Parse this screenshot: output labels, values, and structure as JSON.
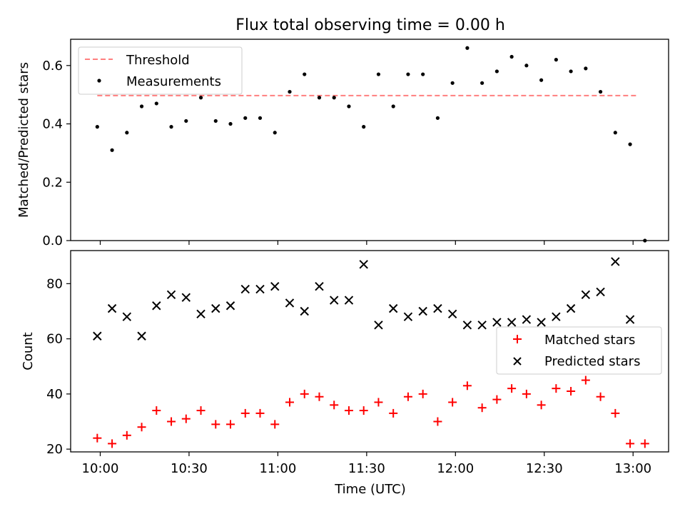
{
  "figure": {
    "title": "Flux total observing time = 0.00 h"
  },
  "colors": {
    "threshold": "#ff7f7f",
    "measurements": "#000000",
    "matched": "#ff0000",
    "predicted": "#000000"
  },
  "chart_data": [
    {
      "type": "scatter",
      "panel": "top",
      "title": "Flux total observing time = 0.00 h",
      "xlabel": "",
      "ylabel": "Matched/Predicted stars",
      "ylim": [
        0,
        0.69
      ],
      "yticks": [
        "0.0",
        "0.2",
        "0.4",
        "0.6"
      ],
      "yticks_values": [
        0.0,
        0.2,
        0.4,
        0.6
      ],
      "legend": {
        "placement": "upper-left",
        "entries": [
          "Threshold",
          "Measurements"
        ]
      },
      "series": [
        {
          "name": "Threshold",
          "style": "dashed-line",
          "x": [
            "09:59",
            "13:01"
          ],
          "values": [
            0.497,
            0.497
          ]
        },
        {
          "name": "Measurements",
          "style": "dot",
          "x": [
            "09:59",
            "10:04",
            "10:09",
            "10:14",
            "10:19",
            "10:24",
            "10:29",
            "10:34",
            "10:39",
            "10:44",
            "10:49",
            "10:54",
            "10:59",
            "11:04",
            "11:09",
            "11:14",
            "11:19",
            "11:24",
            "11:29",
            "11:34",
            "11:39",
            "11:44",
            "11:49",
            "11:54",
            "11:59",
            "12:04",
            "12:09",
            "12:14",
            "12:19",
            "12:24",
            "12:29",
            "12:34",
            "12:39",
            "12:44",
            "12:49",
            "12:54",
            "12:59",
            "13:04"
          ],
          "values": [
            0.39,
            0.31,
            0.37,
            0.46,
            0.47,
            0.39,
            0.41,
            0.49,
            0.41,
            0.4,
            0.42,
            0.42,
            0.37,
            0.51,
            0.57,
            0.49,
            0.49,
            0.46,
            0.39,
            0.57,
            0.46,
            0.57,
            0.57,
            0.42,
            0.54,
            0.66,
            0.54,
            0.58,
            0.63,
            0.6,
            0.55,
            0.62,
            0.58,
            0.59,
            0.51,
            0.37,
            0.33,
            0.0
          ]
        }
      ]
    },
    {
      "type": "scatter",
      "panel": "bottom",
      "xlabel": "Time (UTC)",
      "ylabel": "Count",
      "ylim": [
        19,
        92
      ],
      "yticks": [
        "20",
        "40",
        "60",
        "80"
      ],
      "yticks_values": [
        20,
        40,
        60,
        80
      ],
      "xlim_minutes": [
        -10,
        192
      ],
      "xticks": [
        "10:00",
        "10:30",
        "11:00",
        "11:30",
        "12:00",
        "12:30",
        "13:00"
      ],
      "xticks_minutes": [
        0,
        30,
        60,
        90,
        120,
        150,
        180
      ],
      "legend": {
        "placement": "center-right",
        "entries": [
          "Matched stars",
          "Predicted stars"
        ]
      },
      "series": [
        {
          "name": "Matched stars",
          "marker": "+",
          "x": [
            "09:59",
            "10:04",
            "10:09",
            "10:14",
            "10:19",
            "10:24",
            "10:29",
            "10:34",
            "10:39",
            "10:44",
            "10:49",
            "10:54",
            "10:59",
            "11:04",
            "11:09",
            "11:14",
            "11:19",
            "11:24",
            "11:29",
            "11:34",
            "11:39",
            "11:44",
            "11:49",
            "11:54",
            "11:59",
            "12:04",
            "12:09",
            "12:14",
            "12:19",
            "12:24",
            "12:29",
            "12:34",
            "12:39",
            "12:44",
            "12:49",
            "12:54",
            "12:59",
            "13:04"
          ],
          "values": [
            24,
            22,
            25,
            28,
            34,
            30,
            31,
            34,
            29,
            29,
            33,
            33,
            29,
            37,
            40,
            39,
            36,
            34,
            34,
            37,
            33,
            39,
            40,
            30,
            37,
            43,
            35,
            38,
            42,
            40,
            36,
            42,
            41,
            45,
            39,
            33,
            22,
            22
          ]
        },
        {
          "name": "Predicted stars",
          "marker": "x",
          "x": [
            "09:59",
            "10:04",
            "10:09",
            "10:14",
            "10:19",
            "10:24",
            "10:29",
            "10:34",
            "10:39",
            "10:44",
            "10:49",
            "10:54",
            "10:59",
            "11:04",
            "11:09",
            "11:14",
            "11:19",
            "11:24",
            "11:29",
            "11:34",
            "11:39",
            "11:44",
            "11:49",
            "11:54",
            "11:59",
            "12:04",
            "12:09",
            "12:14",
            "12:19",
            "12:24",
            "12:29",
            "12:34",
            "12:39",
            "12:44",
            "12:49",
            "12:54",
            "12:59"
          ],
          "values": [
            61,
            71,
            68,
            61,
            72,
            76,
            75,
            69,
            71,
            72,
            78,
            78,
            79,
            73,
            70,
            79,
            74,
            74,
            87,
            65,
            71,
            68,
            70,
            71,
            69,
            65,
            65,
            66,
            66,
            67,
            66,
            68,
            71,
            76,
            77,
            88,
            67
          ]
        }
      ]
    }
  ]
}
